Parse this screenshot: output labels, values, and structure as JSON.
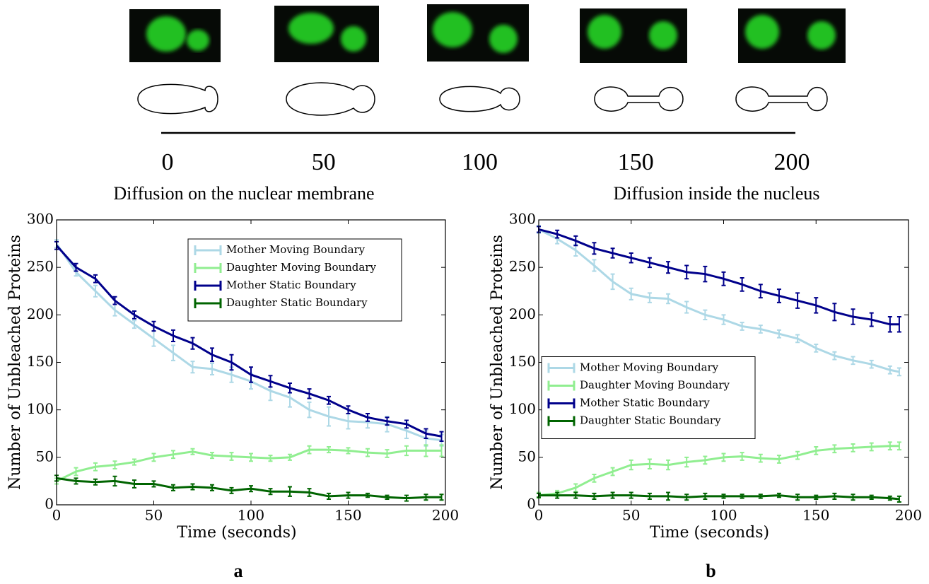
{
  "timeline": {
    "ticks": [
      0,
      50,
      100,
      150,
      200
    ]
  },
  "chart_data": [
    {
      "type": "line",
      "title": "Diffusion on the nuclear membrane",
      "xlabel": "Time (seconds)",
      "ylabel": "Number of Unbleached Proteins",
      "panel_label": "a",
      "x": [
        0,
        10,
        20,
        30,
        40,
        50,
        60,
        70,
        80,
        90,
        100,
        110,
        120,
        130,
        140,
        150,
        160,
        170,
        180,
        190,
        198
      ],
      "xlim": [
        0,
        200
      ],
      "ylim": [
        0,
        300
      ],
      "xticks": [
        0,
        50,
        100,
        150,
        200
      ],
      "yticks": [
        0,
        50,
        100,
        150,
        200,
        250,
        300
      ],
      "legend": "upper right",
      "series": [
        {
          "name": "Mother Moving Boundary",
          "color": "#add8e6",
          "values": [
            275,
            245,
            225,
            205,
            190,
            175,
            160,
            145,
            143,
            137,
            130,
            120,
            113,
            100,
            93,
            88,
            87,
            85,
            78,
            70,
            68
          ],
          "errors": [
            4,
            4,
            6,
            6,
            4,
            8,
            8,
            6,
            6,
            8,
            8,
            10,
            10,
            8,
            10,
            8,
            6,
            8,
            8,
            8,
            6
          ]
        },
        {
          "name": "Daughter Moving Boundary",
          "color": "#90ee90",
          "values": [
            25,
            35,
            40,
            42,
            45,
            50,
            53,
            56,
            52,
            51,
            50,
            49,
            50,
            58,
            58,
            57,
            55,
            54,
            57,
            57,
            57
          ],
          "errors": [
            3,
            4,
            4,
            4,
            3,
            4,
            4,
            3,
            3,
            4,
            4,
            3,
            3,
            4,
            3,
            3,
            4,
            4,
            5,
            6,
            6
          ]
        },
        {
          "name": "Mother Static Boundary",
          "color": "#00008b",
          "values": [
            273,
            250,
            238,
            215,
            200,
            188,
            178,
            170,
            158,
            150,
            137,
            130,
            123,
            117,
            110,
            100,
            92,
            88,
            85,
            75,
            72
          ],
          "errors": [
            4,
            4,
            4,
            4,
            4,
            5,
            6,
            6,
            7,
            8,
            8,
            6,
            5,
            5,
            4,
            4,
            4,
            4,
            4,
            5,
            5
          ]
        },
        {
          "name": "Daughter Static Boundary",
          "color": "#006400",
          "values": [
            28,
            25,
            24,
            25,
            22,
            22,
            18,
            19,
            18,
            15,
            17,
            14,
            14,
            13,
            9,
            10,
            10,
            8,
            7,
            8,
            8
          ],
          "errors": [
            3,
            3,
            3,
            5,
            4,
            3,
            3,
            3,
            3,
            3,
            3,
            3,
            5,
            4,
            3,
            3,
            2,
            2,
            3,
            3,
            3
          ]
        }
      ]
    },
    {
      "type": "line",
      "title": "Diffusion inside the nucleus",
      "xlabel": "Time (seconds)",
      "ylabel": "Number of Unbleached Proteins",
      "panel_label": "b",
      "x": [
        0,
        10,
        20,
        30,
        40,
        50,
        60,
        70,
        80,
        90,
        100,
        110,
        120,
        130,
        140,
        150,
        160,
        170,
        180,
        190,
        195
      ],
      "xlim": [
        0,
        200
      ],
      "ylim": [
        0,
        300
      ],
      "xticks": [
        0,
        50,
        100,
        150,
        200
      ],
      "yticks": [
        0,
        50,
        100,
        150,
        200,
        250,
        300
      ],
      "legend": "center left",
      "series": [
        {
          "name": "Mother Moving Boundary",
          "color": "#add8e6",
          "values": [
            290,
            280,
            268,
            252,
            235,
            222,
            218,
            217,
            208,
            200,
            195,
            188,
            185,
            180,
            175,
            165,
            157,
            152,
            148,
            142,
            140
          ],
          "errors": [
            4,
            5,
            6,
            6,
            8,
            6,
            5,
            5,
            6,
            5,
            5,
            4,
            4,
            4,
            4,
            4,
            4,
            4,
            4,
            4,
            4
          ]
        },
        {
          "name": "Daughter Moving Boundary",
          "color": "#90ee90",
          "values": [
            10,
            12,
            18,
            28,
            35,
            42,
            43,
            42,
            45,
            47,
            50,
            51,
            49,
            48,
            52,
            57,
            59,
            60,
            61,
            62,
            62
          ],
          "errors": [
            3,
            3,
            4,
            4,
            4,
            5,
            5,
            5,
            5,
            4,
            4,
            4,
            4,
            4,
            4,
            4,
            4,
            4,
            4,
            4,
            4
          ]
        },
        {
          "name": "Mother Static Boundary",
          "color": "#00008b",
          "values": [
            290,
            285,
            278,
            270,
            265,
            260,
            255,
            250,
            245,
            243,
            238,
            232,
            225,
            220,
            215,
            210,
            203,
            198,
            195,
            190,
            190
          ],
          "errors": [
            3,
            4,
            5,
            6,
            5,
            5,
            5,
            6,
            7,
            8,
            7,
            7,
            7,
            7,
            8,
            8,
            9,
            8,
            7,
            8,
            8
          ]
        },
        {
          "name": "Daughter Static Boundary",
          "color": "#006400",
          "values": [
            10,
            10,
            10,
            9,
            10,
            10,
            9,
            9,
            8,
            9,
            9,
            9,
            9,
            10,
            8,
            8,
            9,
            8,
            8,
            7,
            6
          ],
          "errors": [
            2,
            3,
            3,
            3,
            3,
            3,
            3,
            4,
            3,
            3,
            2,
            2,
            2,
            2,
            3,
            2,
            3,
            3,
            2,
            2,
            3
          ]
        }
      ]
    }
  ]
}
